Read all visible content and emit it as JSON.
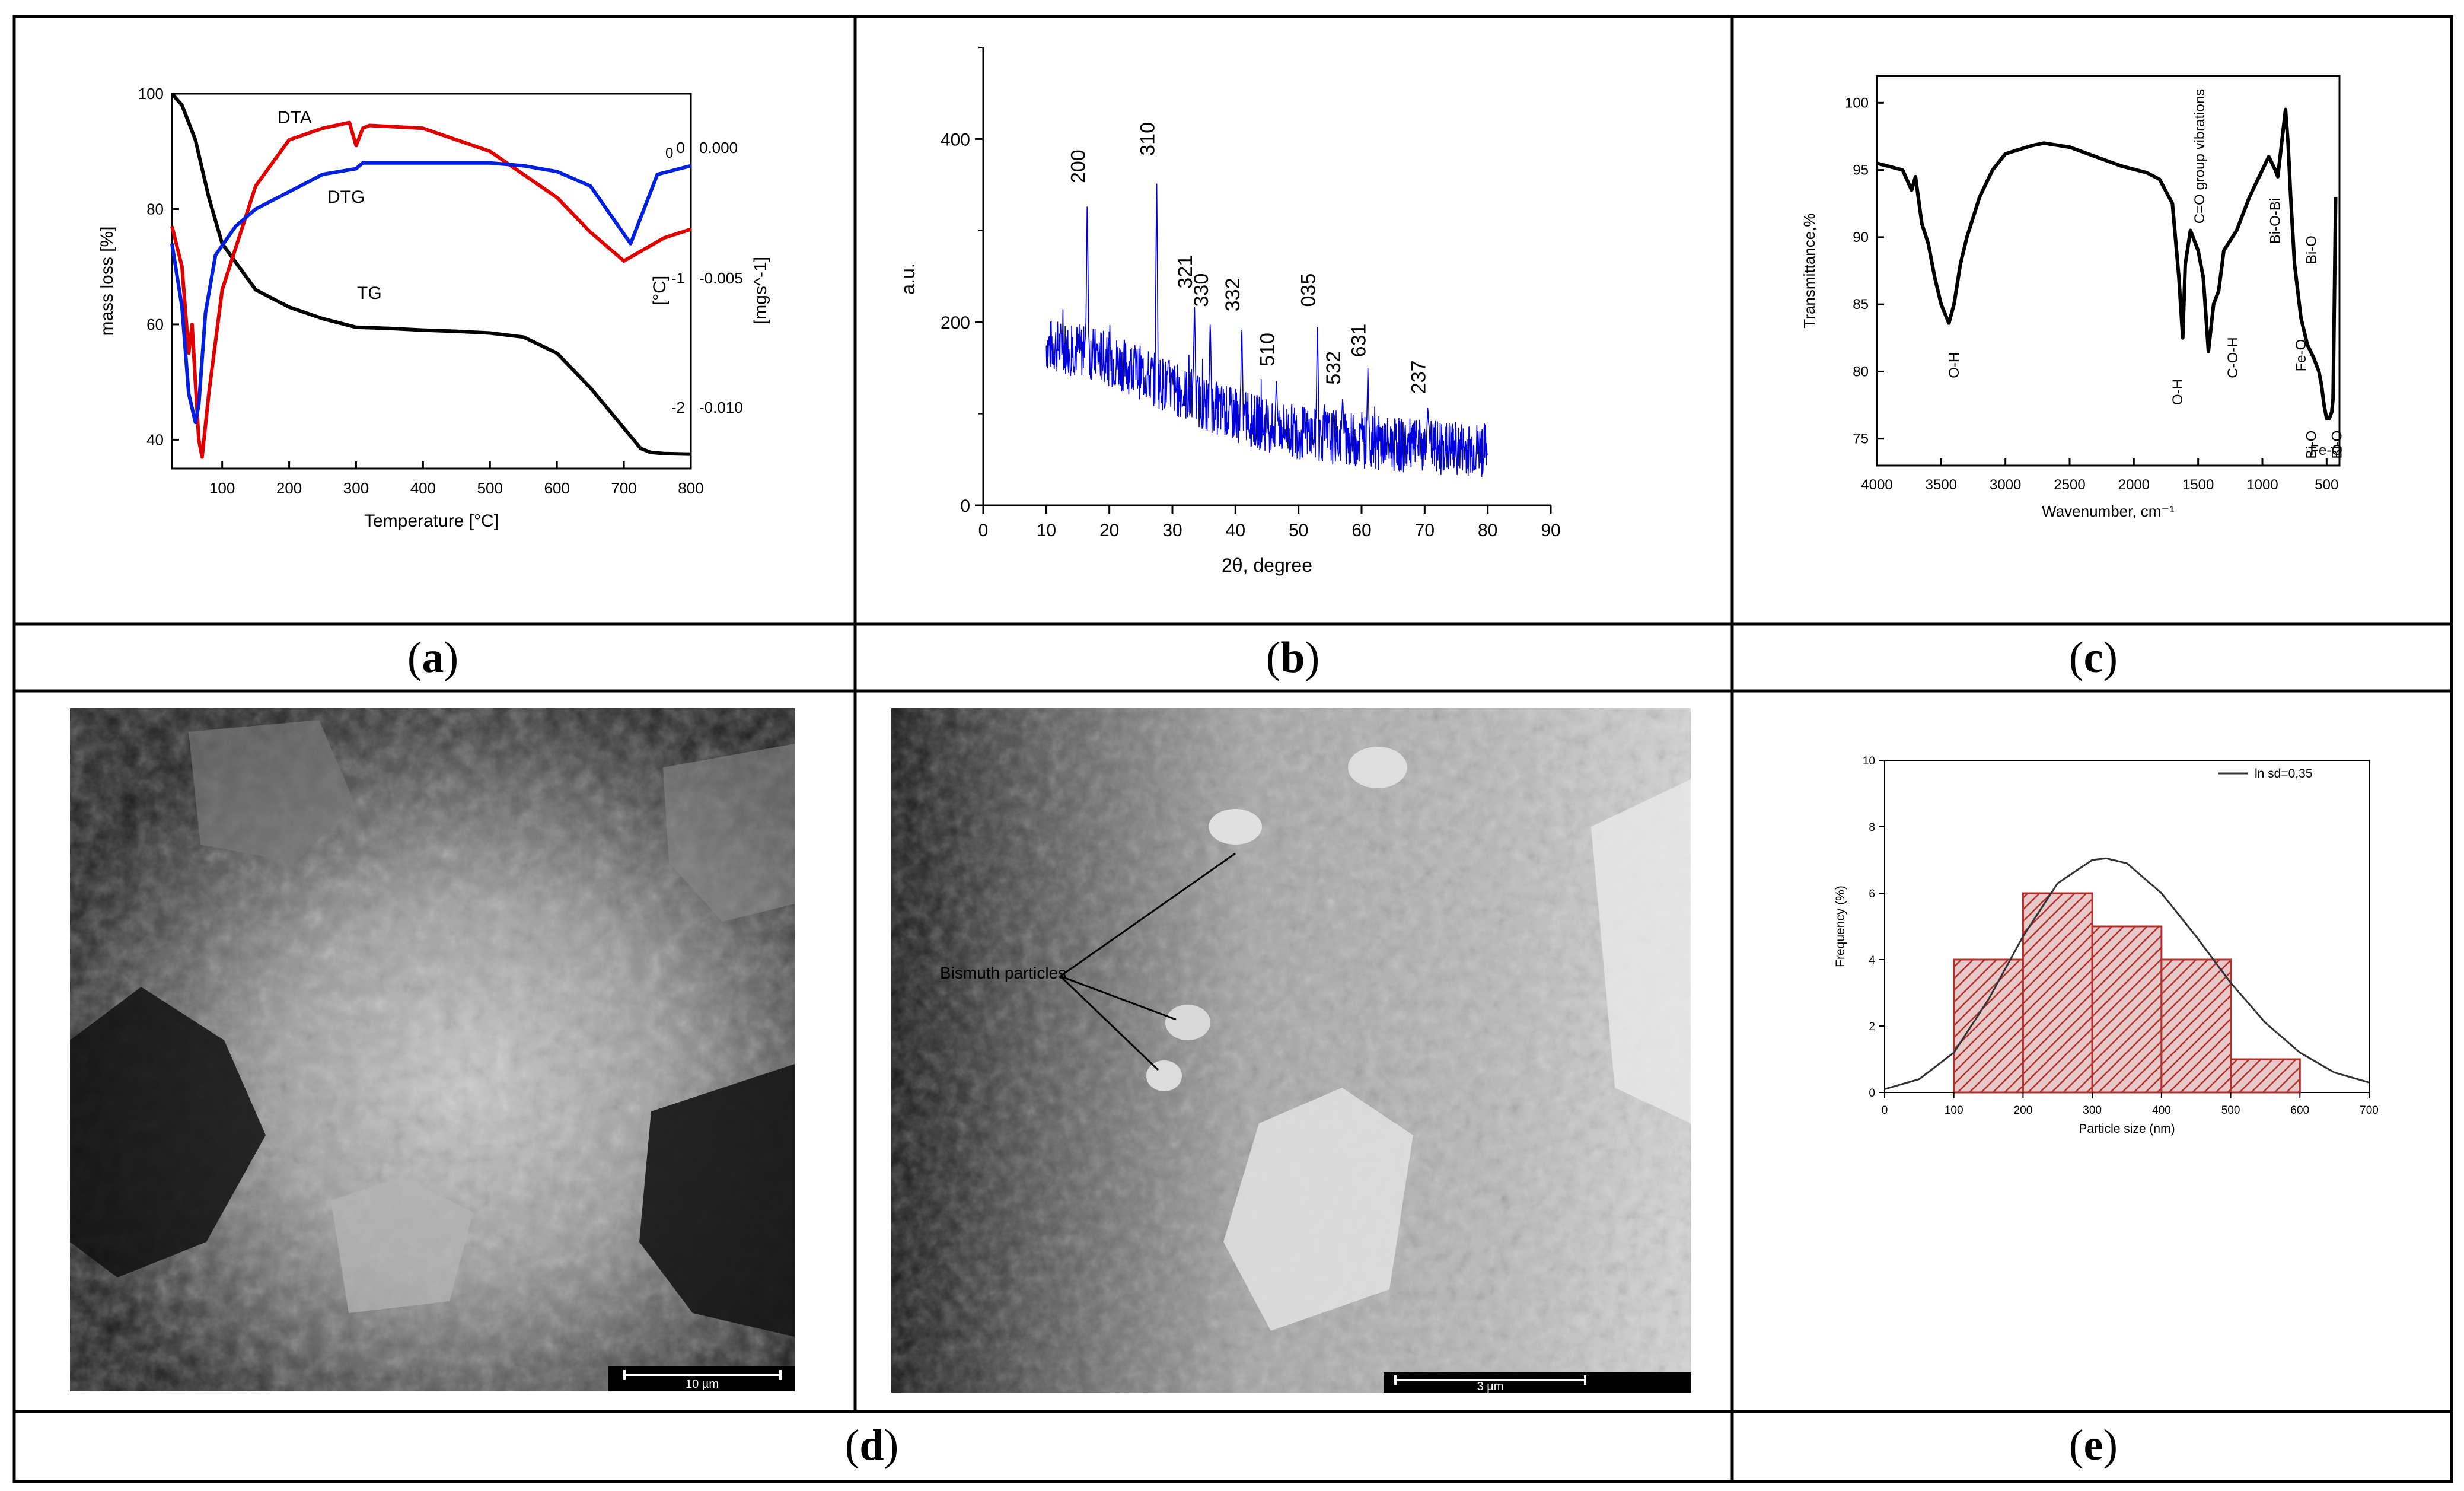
{
  "captions": {
    "a": "a",
    "b": "b",
    "c": "c",
    "d": "d",
    "e": "e"
  },
  "chart_data": [
    {
      "panel": "a",
      "type": "line",
      "xlabel": "Temperature [°C]",
      "ylabel_left": "mass loss [%]",
      "ylabel_right_1": "[°C]",
      "ylabel_right_2": "[mgs^-1]",
      "xlim": [
        25,
        800
      ],
      "ylim_left": [
        35,
        100
      ],
      "x_ticks": [
        "100",
        "200",
        "300",
        "400",
        "500",
        "600",
        "700",
        "800"
      ],
      "y_ticks_left": [
        "100",
        "80",
        "60",
        "40"
      ],
      "y_ticks_right_1": [
        "0",
        "-1",
        "-2"
      ],
      "y_ticks_right_2": [
        "0.000",
        "-0.005",
        "-0.010"
      ],
      "series": [
        {
          "name": "TG",
          "color": "#000000",
          "x": [
            25,
            40,
            60,
            80,
            100,
            150,
            200,
            250,
            300,
            350,
            400,
            450,
            500,
            550,
            600,
            650,
            700,
            725,
            740,
            760,
            800
          ],
          "y": [
            100,
            98,
            92,
            82,
            74,
            66,
            63,
            61,
            59.5,
            59.3,
            59,
            58.8,
            58.5,
            57.8,
            55,
            49,
            42,
            38.5,
            37.8,
            37.6,
            37.5
          ]
        },
        {
          "name": "DTA",
          "color": "#e00000",
          "x": [
            25,
            40,
            50,
            55,
            60,
            65,
            70,
            80,
            100,
            150,
            200,
            250,
            290,
            300,
            310,
            320,
            400,
            500,
            550,
            600,
            650,
            700,
            730,
            760,
            800
          ],
          "y": [
            77,
            70,
            55,
            60,
            50,
            40,
            37,
            48,
            66,
            84,
            92,
            94,
            95,
            91,
            94,
            94.5,
            94,
            90,
            86,
            82,
            76,
            71,
            73,
            75,
            76.5
          ]
        },
        {
          "name": "DTG",
          "color": "#0020e0",
          "x": [
            25,
            40,
            50,
            60,
            65,
            75,
            90,
            120,
            150,
            200,
            250,
            300,
            310,
            350,
            400,
            500,
            550,
            600,
            650,
            680,
            710,
            730,
            750,
            800
          ],
          "y": [
            74,
            63,
            48,
            43,
            46,
            62,
            72,
            77,
            80,
            83,
            86,
            87,
            88,
            88,
            88,
            88,
            87.5,
            86.5,
            84,
            79,
            74,
            80,
            86,
            87.5
          ]
        }
      ],
      "annotations": [
        "DTA",
        "DTG",
        "TG",
        "0"
      ]
    },
    {
      "panel": "b",
      "type": "line",
      "xlabel": "2θ, degree",
      "ylabel": "a.u.",
      "xlim": [
        0,
        90
      ],
      "ylim": [
        0,
        500
      ],
      "x_ticks": [
        "0",
        "10",
        "20",
        "30",
        "40",
        "50",
        "60",
        "70",
        "80",
        "90"
      ],
      "y_ticks": [
        "0",
        "200",
        "400"
      ],
      "series": [
        {
          "color": "#0000dd"
        }
      ],
      "baseline": {
        "x": [
          10,
          15,
          20,
          25,
          30,
          35,
          40,
          45,
          50,
          55,
          60,
          65,
          70,
          75,
          80
        ],
        "y": [
          175,
          170,
          160,
          145,
          128,
          112,
          98,
          88,
          80,
          75,
          70,
          66,
          64,
          62,
          60
        ]
      },
      "peaks": [
        {
          "x": 16.5,
          "y": 340,
          "label": "200"
        },
        {
          "x": 27.5,
          "y": 370,
          "label": "310"
        },
        {
          "x": 33.5,
          "y": 225,
          "label": "321"
        },
        {
          "x": 36,
          "y": 205,
          "label": "330"
        },
        {
          "x": 41,
          "y": 200,
          "label": "332"
        },
        {
          "x": 46.5,
          "y": 140,
          "label": "510"
        },
        {
          "x": 53,
          "y": 205,
          "label": "035"
        },
        {
          "x": 57,
          "y": 120,
          "label": "532"
        },
        {
          "x": 61,
          "y": 150,
          "label": "631"
        },
        {
          "x": 70.5,
          "y": 110,
          "label": "237"
        }
      ]
    },
    {
      "panel": "c",
      "type": "line",
      "xlabel": "Wavenumber, cm⁻¹",
      "ylabel": "Transmittance,%",
      "xlim": [
        4000,
        400
      ],
      "ylim": [
        73,
        102
      ],
      "x_ticks": [
        "4000",
        "3500",
        "3000",
        "2500",
        "2000",
        "1500",
        "1000",
        "500"
      ],
      "y_ticks": [
        "100",
        "95",
        "90",
        "85",
        "80",
        "75"
      ],
      "series": [
        {
          "color": "#000000",
          "x": [
            4000,
            3800,
            3730,
            3700,
            3650,
            3600,
            3550,
            3500,
            3440,
            3400,
            3350,
            3300,
            3200,
            3100,
            3000,
            2800,
            2700,
            2500,
            2300,
            2100,
            1900,
            1800,
            1700,
            1650,
            1620,
            1600,
            1560,
            1500,
            1460,
            1420,
            1380,
            1340,
            1300,
            1200,
            1100,
            1000,
            950,
            900,
            880,
            850,
            820,
            800,
            780,
            750,
            700,
            650,
            600,
            560,
            540,
            520,
            500,
            480,
            460,
            450,
            440,
            430
          ],
          "y": [
            95.5,
            95,
            93.5,
            94.5,
            91,
            89.5,
            87,
            85,
            83.6,
            85,
            88,
            90,
            93,
            95,
            96.2,
            96.8,
            97,
            96.7,
            96,
            95.3,
            94.8,
            94.3,
            92.5,
            87,
            82.5,
            88,
            90.5,
            89,
            87,
            81.5,
            85,
            86,
            89,
            90.5,
            93,
            95,
            96,
            95,
            94.5,
            97,
            99.5,
            97,
            93,
            88,
            84,
            82,
            81,
            80,
            79,
            77.5,
            76.5,
            76.5,
            77,
            78,
            85,
            93
          ]
        }
      ],
      "annotations": [
        "O-H",
        "O-H",
        "C=O group vibrations",
        "C-O-H",
        "Bi-O-Bi",
        "Bi-O",
        "Fe-O",
        "Bi-O",
        "Fe-O",
        "Bi-O"
      ]
    },
    {
      "panel": "e",
      "type": "bar",
      "xlabel": "Particle size (nm)",
      "ylabel": "Frequency (%)",
      "xlim": [
        0,
        700
      ],
      "ylim": [
        0,
        10
      ],
      "x_ticks": [
        "0",
        "100",
        "200",
        "300",
        "400",
        "500",
        "600",
        "700"
      ],
      "y_ticks": [
        "0",
        "2",
        "4",
        "6",
        "8",
        "10"
      ],
      "bins": [
        [
          100,
          200
        ],
        [
          200,
          300
        ],
        [
          300,
          400
        ],
        [
          400,
          500
        ],
        [
          500,
          600
        ]
      ],
      "values": [
        4,
        6,
        5,
        4,
        1
      ],
      "bar_color": "#b03030",
      "fit": {
        "name": "ln sd=0,35",
        "color": "#333333",
        "x": [
          0,
          50,
          100,
          150,
          200,
          250,
          300,
          320,
          350,
          400,
          450,
          500,
          550,
          600,
          650,
          700
        ],
        "y": [
          0.1,
          0.4,
          1.2,
          2.8,
          4.7,
          6.3,
          7.0,
          7.05,
          6.9,
          6.0,
          4.7,
          3.3,
          2.1,
          1.2,
          0.6,
          0.3
        ]
      }
    }
  ],
  "sem": [
    {
      "panel": "d-left",
      "scale_label": "10 µm"
    },
    {
      "panel": "d-right",
      "annotation": "Bismuth particles",
      "scale_label": "3 µm"
    }
  ]
}
